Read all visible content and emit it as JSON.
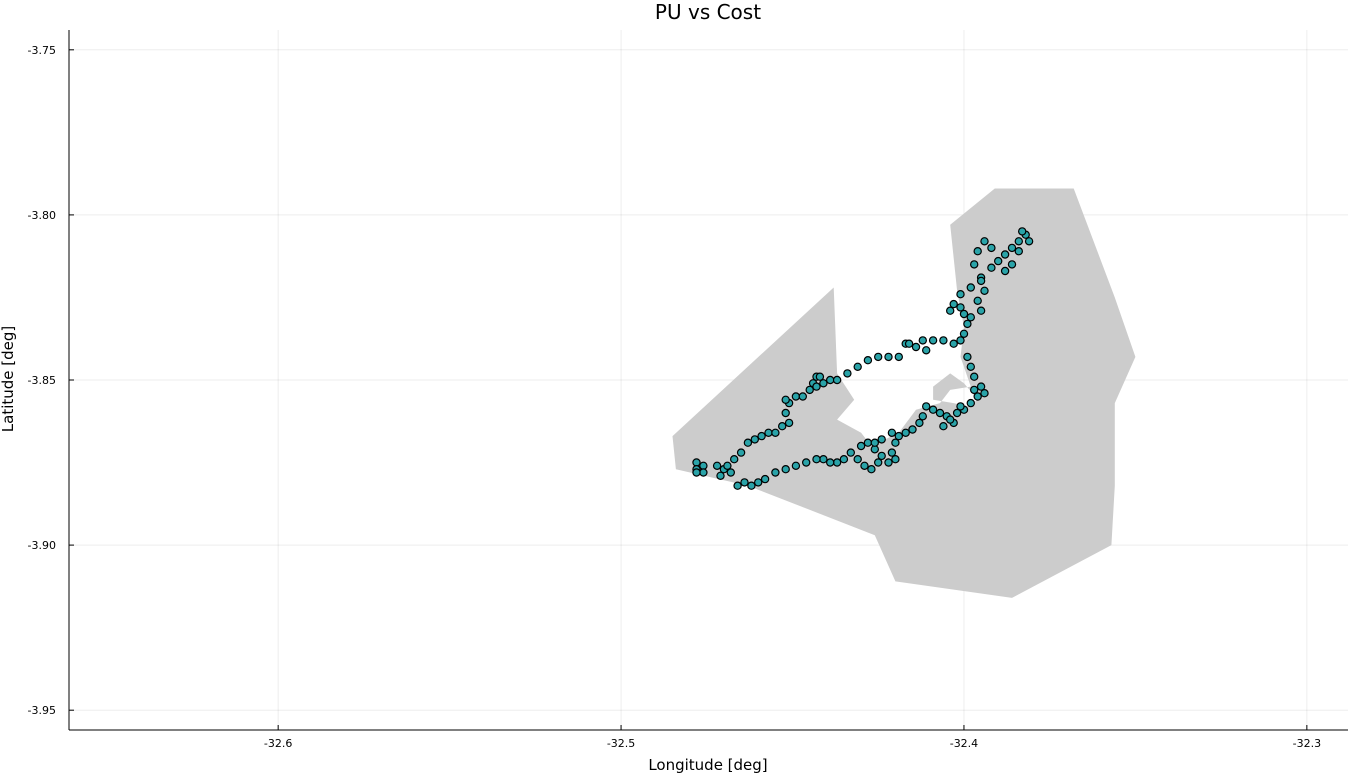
{
  "chart_data": {
    "type": "scatter",
    "title": "PU vs Cost",
    "xlabel": "Longitude [deg]",
    "ylabel": "Latitude [deg]",
    "xlim": [
      -32.661,
      -32.288
    ],
    "ylim": [
      -3.956,
      -3.744
    ],
    "xticks": [
      -32.6,
      -32.5,
      -32.4,
      -32.3
    ],
    "xtick_labels": [
      "-32.6",
      "-32.5",
      "-32.4",
      "-32.3"
    ],
    "yticks": [
      -3.75,
      -3.8,
      -3.85,
      -3.9,
      -3.95
    ],
    "ytick_labels": [
      "-3.75",
      "-3.80",
      "-3.85",
      "-3.90",
      "-3.95"
    ],
    "grid": true,
    "legend": false,
    "colors": {
      "marker_fill": "#2aa3a8",
      "marker_stroke": "#000000",
      "land_fill": "#cccccc",
      "hole_fill": "#ffffff",
      "axis": "#000000"
    },
    "region": {
      "outer": [
        [
          -32.485,
          -3.867
        ],
        [
          -32.438,
          -3.822
        ],
        [
          -32.437,
          -3.848
        ],
        [
          -32.432,
          -3.856
        ],
        [
          -32.437,
          -3.862
        ],
        [
          -32.43,
          -3.866
        ],
        [
          -32.427,
          -3.87
        ],
        [
          -32.419,
          -3.866
        ],
        [
          -32.414,
          -3.859
        ],
        [
          -32.407,
          -3.857
        ],
        [
          -32.404,
          -3.853
        ],
        [
          -32.398,
          -3.852
        ],
        [
          -32.401,
          -3.843
        ],
        [
          -32.4,
          -3.834
        ],
        [
          -32.402,
          -3.823
        ],
        [
          -32.404,
          -3.803
        ],
        [
          -32.391,
          -3.792
        ],
        [
          -32.368,
          -3.792
        ],
        [
          -32.356,
          -3.825
        ],
        [
          -32.35,
          -3.843
        ],
        [
          -32.356,
          -3.857
        ],
        [
          -32.356,
          -3.882
        ],
        [
          -32.357,
          -3.9
        ],
        [
          -32.386,
          -3.916
        ],
        [
          -32.42,
          -3.911
        ],
        [
          -32.426,
          -3.897
        ],
        [
          -32.463,
          -3.882
        ],
        [
          -32.484,
          -3.877
        ]
      ],
      "holes": [
        [
          [
            -32.409,
            -3.852
          ],
          [
            -32.404,
            -3.848
          ],
          [
            -32.4,
            -3.851
          ],
          [
            -32.396,
            -3.856
          ],
          [
            -32.399,
            -3.858
          ],
          [
            -32.403,
            -3.857
          ],
          [
            -32.409,
            -3.856
          ]
        ]
      ]
    },
    "series": [
      {
        "points": [
          [
            -32.478,
            -3.875
          ],
          [
            -32.476,
            -3.876
          ],
          [
            -32.478,
            -3.877
          ],
          [
            -32.476,
            -3.878
          ],
          [
            -32.478,
            -3.878
          ],
          [
            -32.472,
            -3.876
          ],
          [
            -32.47,
            -3.877
          ],
          [
            -32.469,
            -3.876
          ],
          [
            -32.471,
            -3.879
          ],
          [
            -32.468,
            -3.878
          ],
          [
            -32.467,
            -3.874
          ],
          [
            -32.465,
            -3.872
          ],
          [
            -32.463,
            -3.869
          ],
          [
            -32.461,
            -3.868
          ],
          [
            -32.459,
            -3.867
          ],
          [
            -32.457,
            -3.866
          ],
          [
            -32.455,
            -3.866
          ],
          [
            -32.453,
            -3.864
          ],
          [
            -32.451,
            -3.863
          ],
          [
            -32.452,
            -3.86
          ],
          [
            -32.451,
            -3.857
          ],
          [
            -32.452,
            -3.856
          ],
          [
            -32.449,
            -3.855
          ],
          [
            -32.447,
            -3.855
          ],
          [
            -32.445,
            -3.853
          ],
          [
            -32.444,
            -3.851
          ],
          [
            -32.443,
            -3.849
          ],
          [
            -32.442,
            -3.849
          ],
          [
            -32.441,
            -3.851
          ],
          [
            -32.443,
            -3.852
          ],
          [
            -32.439,
            -3.85
          ],
          [
            -32.437,
            -3.85
          ],
          [
            -32.434,
            -3.848
          ],
          [
            -32.431,
            -3.846
          ],
          [
            -32.428,
            -3.844
          ],
          [
            -32.425,
            -3.843
          ],
          [
            -32.422,
            -3.843
          ],
          [
            -32.419,
            -3.843
          ],
          [
            -32.417,
            -3.839
          ],
          [
            -32.414,
            -3.84
          ],
          [
            -32.411,
            -3.841
          ],
          [
            -32.416,
            -3.839
          ],
          [
            -32.412,
            -3.838
          ],
          [
            -32.409,
            -3.838
          ],
          [
            -32.406,
            -3.838
          ],
          [
            -32.403,
            -3.839
          ],
          [
            -32.401,
            -3.838
          ],
          [
            -32.4,
            -3.836
          ],
          [
            -32.399,
            -3.833
          ],
          [
            -32.4,
            -3.83
          ],
          [
            -32.401,
            -3.828
          ],
          [
            -32.403,
            -3.827
          ],
          [
            -32.404,
            -3.829
          ],
          [
            -32.401,
            -3.824
          ],
          [
            -32.398,
            -3.822
          ],
          [
            -32.395,
            -3.819
          ],
          [
            -32.392,
            -3.816
          ],
          [
            -32.39,
            -3.814
          ],
          [
            -32.388,
            -3.812
          ],
          [
            -32.386,
            -3.81
          ],
          [
            -32.384,
            -3.808
          ],
          [
            -32.382,
            -3.806
          ],
          [
            -32.381,
            -3.808
          ],
          [
            -32.383,
            -3.805
          ],
          [
            -32.384,
            -3.811
          ],
          [
            -32.386,
            -3.815
          ],
          [
            -32.388,
            -3.817
          ],
          [
            -32.392,
            -3.81
          ],
          [
            -32.394,
            -3.808
          ],
          [
            -32.396,
            -3.811
          ],
          [
            -32.397,
            -3.815
          ],
          [
            -32.395,
            -3.82
          ],
          [
            -32.394,
            -3.823
          ],
          [
            -32.396,
            -3.826
          ],
          [
            -32.395,
            -3.829
          ],
          [
            -32.398,
            -3.831
          ],
          [
            -32.399,
            -3.843
          ],
          [
            -32.398,
            -3.846
          ],
          [
            -32.397,
            -3.849
          ],
          [
            -32.395,
            -3.852
          ],
          [
            -32.394,
            -3.854
          ],
          [
            -32.396,
            -3.855
          ],
          [
            -32.398,
            -3.857
          ],
          [
            -32.4,
            -3.859
          ],
          [
            -32.402,
            -3.86
          ],
          [
            -32.403,
            -3.863
          ],
          [
            -32.405,
            -3.861
          ],
          [
            -32.407,
            -3.86
          ],
          [
            -32.409,
            -3.859
          ],
          [
            -32.411,
            -3.858
          ],
          [
            -32.412,
            -3.861
          ],
          [
            -32.413,
            -3.863
          ],
          [
            -32.415,
            -3.865
          ],
          [
            -32.417,
            -3.866
          ],
          [
            -32.419,
            -3.867
          ],
          [
            -32.421,
            -3.866
          ],
          [
            -32.42,
            -3.869
          ],
          [
            -32.421,
            -3.872
          ],
          [
            -32.42,
            -3.874
          ],
          [
            -32.422,
            -3.875
          ],
          [
            -32.424,
            -3.873
          ],
          [
            -32.426,
            -3.871
          ],
          [
            -32.428,
            -3.869
          ],
          [
            -32.43,
            -3.87
          ],
          [
            -32.433,
            -3.872
          ],
          [
            -32.435,
            -3.874
          ],
          [
            -32.437,
            -3.875
          ],
          [
            -32.439,
            -3.875
          ],
          [
            -32.441,
            -3.874
          ],
          [
            -32.443,
            -3.874
          ],
          [
            -32.446,
            -3.875
          ],
          [
            -32.449,
            -3.876
          ],
          [
            -32.452,
            -3.877
          ],
          [
            -32.455,
            -3.878
          ],
          [
            -32.458,
            -3.88
          ],
          [
            -32.46,
            -3.881
          ],
          [
            -32.462,
            -3.882
          ],
          [
            -32.464,
            -3.881
          ],
          [
            -32.466,
            -3.882
          ],
          [
            -32.425,
            -3.875
          ],
          [
            -32.427,
            -3.877
          ],
          [
            -32.429,
            -3.876
          ],
          [
            -32.431,
            -3.874
          ],
          [
            -32.426,
            -3.869
          ],
          [
            -32.424,
            -3.868
          ],
          [
            -32.406,
            -3.864
          ],
          [
            -32.404,
            -3.862
          ],
          [
            -32.401,
            -3.858
          ],
          [
            -32.397,
            -3.853
          ]
        ]
      }
    ]
  }
}
